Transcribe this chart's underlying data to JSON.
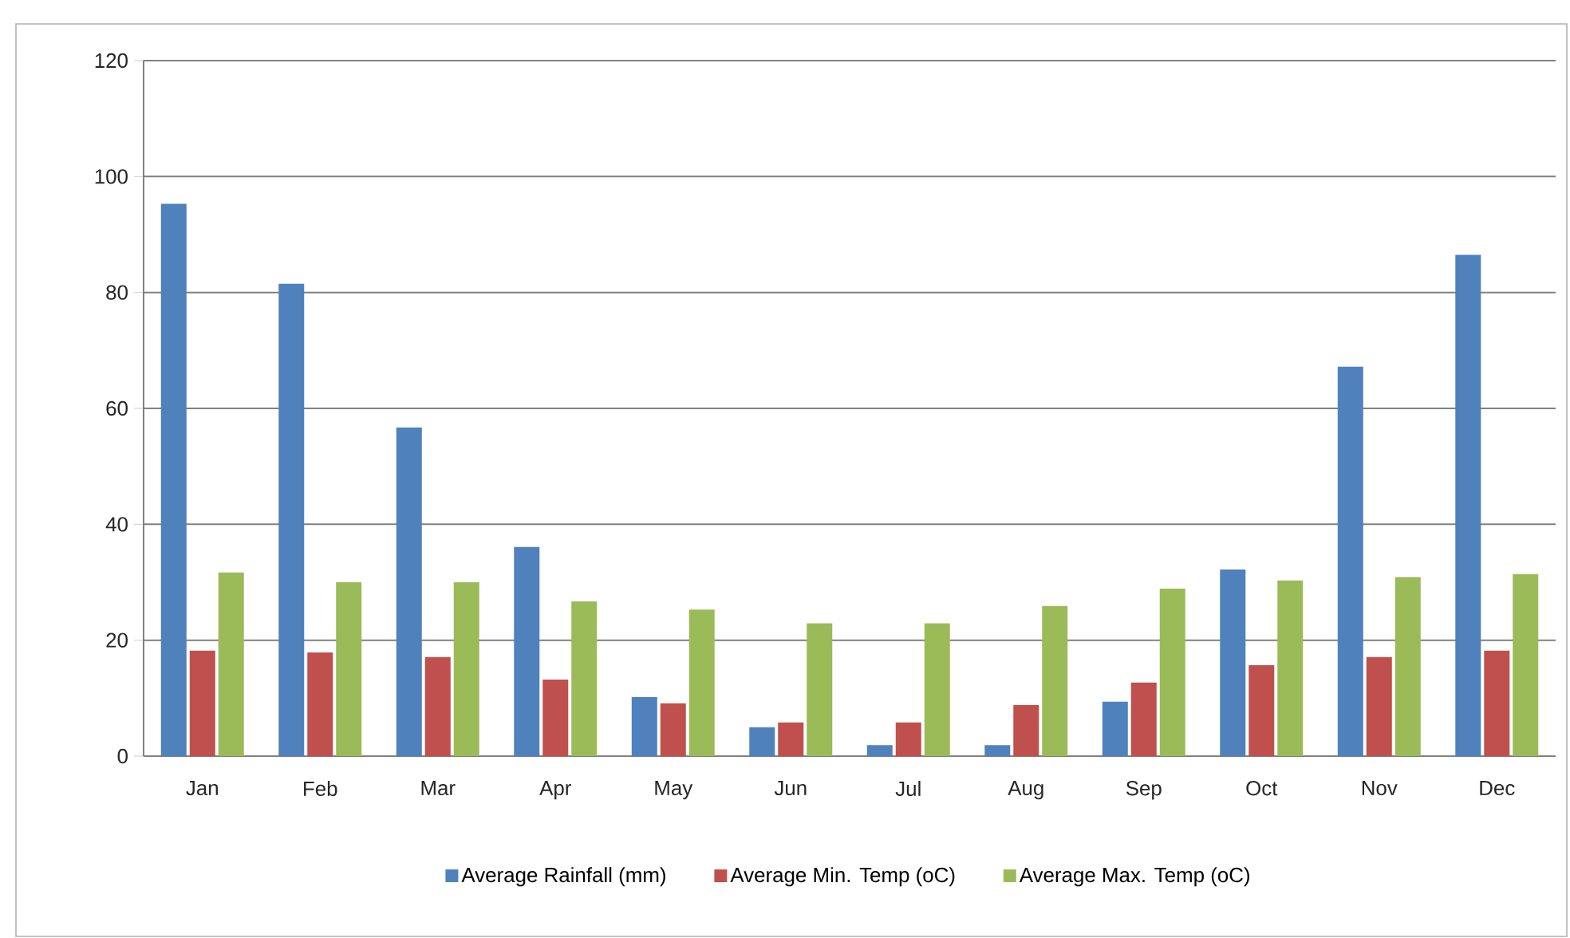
{
  "chart_data": {
    "type": "bar",
    "categories": [
      "Jan",
      "Feb",
      "Mar",
      "Apr",
      "May",
      "Jun",
      "Jul",
      "Aug",
      "Sep",
      "Oct",
      "Nov",
      "Dec"
    ],
    "series": [
      {
        "name": "Average Rainfall (mm)",
        "color": "#4f81bd",
        "values": [
          95.3,
          81.5,
          56.7,
          36.1,
          10.2,
          5.0,
          1.9,
          1.9,
          9.4,
          32.2,
          67.2,
          86.5
        ]
      },
      {
        "name": "Average Min. Temp (oC)",
        "color": "#c0504d",
        "values": [
          18.2,
          17.9,
          17.1,
          13.2,
          9.1,
          5.8,
          5.8,
          8.8,
          12.7,
          15.7,
          17.1,
          18.2
        ]
      },
      {
        "name": "Average Max. Temp (oC)",
        "color": "#9bbb59",
        "values": [
          31.7,
          30.0,
          30.0,
          26.7,
          25.3,
          22.9,
          22.9,
          25.9,
          28.9,
          30.3,
          30.9,
          31.4
        ]
      }
    ],
    "ylim": [
      0,
      120
    ],
    "yticks": [
      0,
      20,
      40,
      60,
      80,
      100,
      120
    ],
    "grid": "y",
    "legend": "bottom"
  }
}
